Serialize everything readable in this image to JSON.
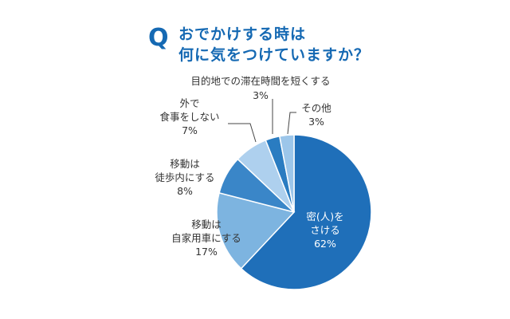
{
  "title": {
    "q_mark": "Q",
    "line1": "おでかけする時は",
    "line2": "何に気をつけていますか？"
  },
  "chart_data": {
    "type": "pie",
    "title": "おでかけする時は 何に気をつけていますか？",
    "start_angle_deg": 0,
    "direction": "clockwise",
    "slices": [
      {
        "label_lines": [
          "密(人)を",
          "さける"
        ],
        "value": 62,
        "value_text": "62%",
        "color": "#1f6fb9",
        "label_color": "#ffffff"
      },
      {
        "label_lines": [
          "移動は",
          "自家用車にする"
        ],
        "value": 17,
        "value_text": "17%",
        "color": "#7db4e0",
        "label_color": "#333333"
      },
      {
        "label_lines": [
          "移動は",
          "徒歩内にする"
        ],
        "value": 8,
        "value_text": "8%",
        "color": "#3a86c8",
        "label_color": "#333333"
      },
      {
        "label_lines": [
          "外で",
          "食事をしない"
        ],
        "value": 7,
        "value_text": "7%",
        "color": "#aed0ee",
        "label_color": "#333333"
      },
      {
        "label_lines": [
          "目的地での滞在時間を短くする"
        ],
        "value": 3,
        "value_text": "3%",
        "color": "#2a7cc1",
        "label_color": "#333333"
      },
      {
        "label_lines": [
          "その他"
        ],
        "value": 3,
        "value_text": "3%",
        "color": "#9cc6ea",
        "label_color": "#333333"
      }
    ]
  }
}
